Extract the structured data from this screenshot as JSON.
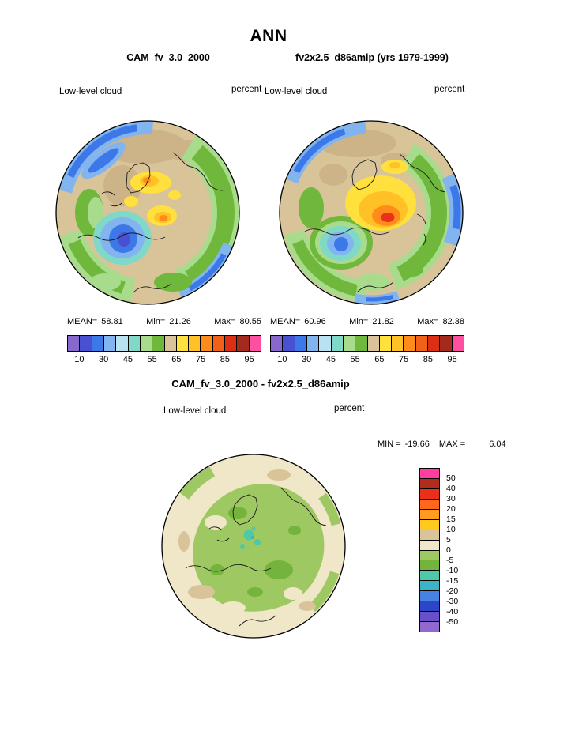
{
  "page": {
    "title": "ANN"
  },
  "panel1": {
    "title": "CAM_fv_3.0_2000",
    "variable": "Low-level cloud",
    "units": "percent",
    "stats": {
      "mean_label": "MEAN=",
      "mean": "58.81",
      "min_label": "Min=",
      "min": "21.26",
      "max_label": "Max=",
      "max": "80.55"
    }
  },
  "panel2": {
    "title": "fv2x2.5_d86amip (yrs 1979-1999)",
    "variable": "Low-level cloud",
    "units": "percent",
    "stats": {
      "mean_label": "MEAN=",
      "mean": "60.96",
      "min_label": "Min=",
      "min": "21.82",
      "max_label": "Max=",
      "max": "82.38"
    }
  },
  "diff": {
    "title": "CAM_fv_3.0_2000 - fv2x2.5_d86amip",
    "variable": "Low-level cloud",
    "units": "percent",
    "stats": {
      "min_label": "MIN =",
      "min": "-19.66",
      "max_label": "MAX =",
      "max": "6.04"
    }
  },
  "colorbar_abs": {
    "ticks": [
      "10",
      "30",
      "45",
      "55",
      "65",
      "75",
      "85",
      "95"
    ],
    "colors": [
      "#8968CD",
      "#4A50D2",
      "#3C78E8",
      "#82B4F0",
      "#B8E2F2",
      "#7FD8C8",
      "#A8DC8C",
      "#6FB83C",
      "#D9C49A",
      "#FFE03C",
      "#FFC125",
      "#FF8C1A",
      "#F2601A",
      "#DC2F14",
      "#A52A1E",
      "#FF4FA0"
    ]
  },
  "colorbar_diff": {
    "labels": [
      "50",
      "40",
      "30",
      "20",
      "15",
      "10",
      "5",
      "0",
      "-5",
      "-10",
      "-15",
      "-20",
      "-30",
      "-40",
      "-50"
    ],
    "colors": [
      "#FF3FA0",
      "#B22C1E",
      "#E8301B",
      "#FF671B",
      "#FF9C1E",
      "#FFC91E",
      "#D9C49A",
      "#F0E6C8",
      "#9DC862",
      "#74B43C",
      "#4FC8A8",
      "#3CB4C8",
      "#4682E1",
      "#2D46C8",
      "#6A50C8",
      "#9168CD"
    ]
  },
  "chart_data": {
    "type": "heatmap",
    "title": "ANN",
    "variable": "Low-level cloud",
    "units": "percent",
    "projection": "north-polar-stereographic",
    "panels": [
      {
        "name": "CAM_fv_3.0_2000",
        "mean": 58.81,
        "min": 21.26,
        "max": 80.55,
        "labeled_contour_ticks": [
          10,
          30,
          45,
          55,
          65,
          75,
          85,
          95
        ],
        "n_color_segments": 16,
        "legend_position": "horizontal, below panel"
      },
      {
        "name": "fv2x2.5_d86amip (yrs 1979-1999)",
        "mean": 60.96,
        "min": 21.82,
        "max": 82.38,
        "labeled_contour_ticks": [
          10,
          30,
          45,
          55,
          65,
          75,
          85,
          95
        ],
        "n_color_segments": 16,
        "legend_position": "horizontal, below panel"
      },
      {
        "name": "CAM_fv_3.0_2000 - fv2x2.5_d86amip",
        "min": -19.66,
        "max": 6.04,
        "contour_levels": [
          50,
          40,
          30,
          20,
          15,
          10,
          5,
          0,
          -5,
          -10,
          -15,
          -20,
          -30,
          -40,
          -50
        ],
        "n_color_segments": 16,
        "legend_position": "vertical, right of panel"
      }
    ]
  }
}
